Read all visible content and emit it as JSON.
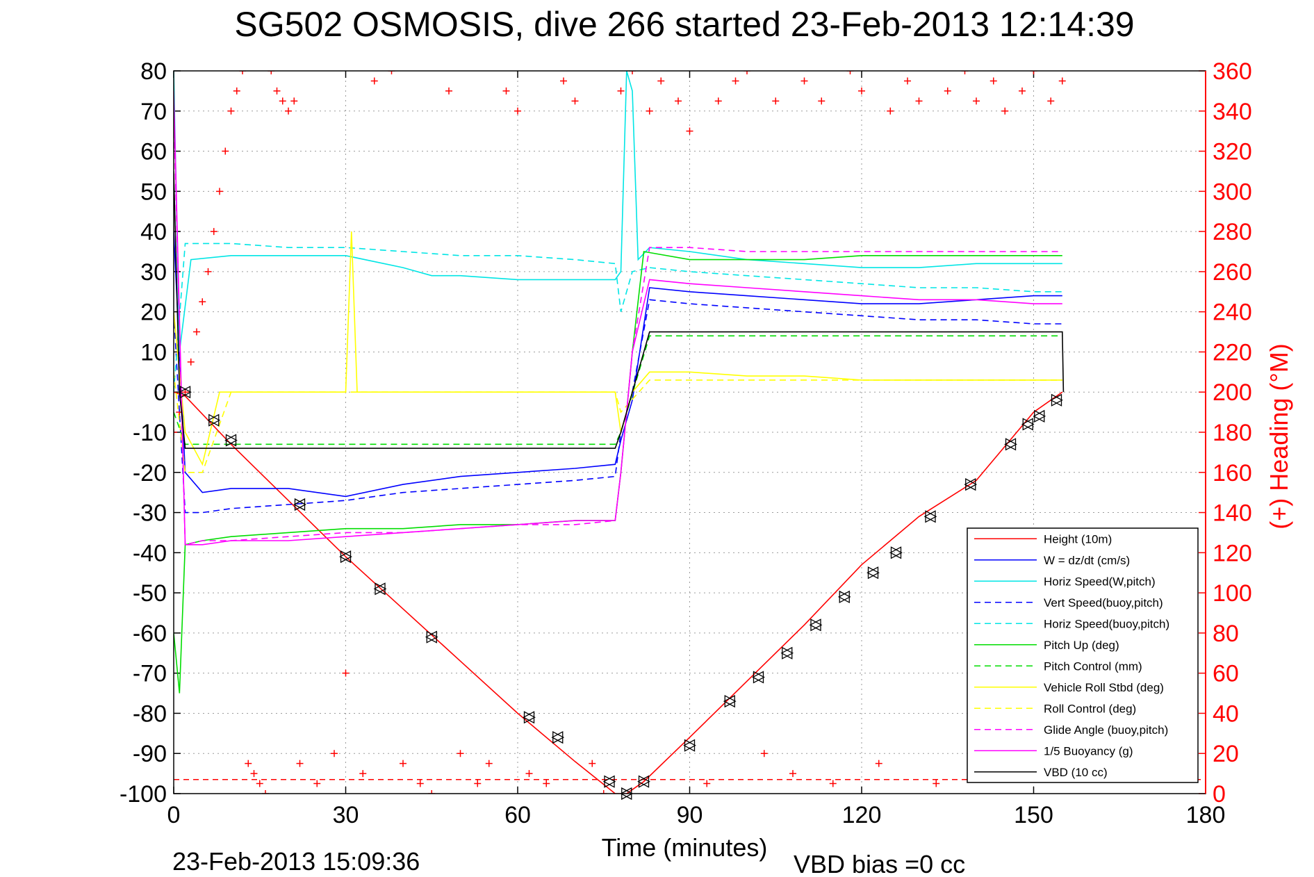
{
  "chart_data": {
    "type": "line",
    "title": "SG502 OSMOSIS, dive 266 started 23-Feb-2013 12:14:39",
    "xlabel": "Time (minutes)",
    "ylabel": "",
    "ylabel_right": "(+) Heading (°M)",
    "xlim": [
      0,
      180
    ],
    "ylim": [
      -100,
      80
    ],
    "ylim_right": [
      0,
      360
    ],
    "x_ticks": [
      "0",
      "30",
      "60",
      "90",
      "120",
      "150",
      "180"
    ],
    "y_ticks": [
      "80",
      "70",
      "60",
      "50",
      "40",
      "30",
      "20",
      "10",
      "0",
      "-10",
      "-20",
      "-30",
      "-40",
      "-50",
      "-60",
      "-70",
      "-80",
      "-90",
      "-100"
    ],
    "y_ticks_right": [
      "360",
      "340",
      "320",
      "300",
      "280",
      "260",
      "240",
      "220",
      "200",
      "180",
      "160",
      "140",
      "120",
      "100",
      "80",
      "60",
      "40",
      "20",
      "0"
    ],
    "grid": true,
    "legend_position": "bottom-right",
    "footer_left": "23-Feb-2013 15:09:36",
    "footer_right": "VBD bias =0 cc",
    "series": [
      {
        "name": "Height (10m)",
        "color": "#ff0000",
        "style": "solid",
        "x": [
          0,
          2,
          10,
          20,
          30,
          40,
          50,
          60,
          70,
          77,
          79,
          82,
          90,
          100,
          110,
          120,
          130,
          140,
          150,
          155
        ],
        "y": [
          0,
          -1,
          -13,
          -27,
          -41,
          -54,
          -67,
          -80,
          -92,
          -100,
          -100,
          -97,
          -86,
          -72,
          -58,
          -43,
          -31,
          -22,
          -5,
          0
        ]
      },
      {
        "name": "W = dz/dt (cm/s)",
        "color": "#0000ff",
        "style": "solid",
        "x": [
          0,
          1,
          2,
          5,
          10,
          20,
          30,
          40,
          50,
          60,
          70,
          77,
          78,
          80,
          83,
          90,
          100,
          110,
          120,
          130,
          140,
          150,
          155
        ],
        "y": [
          40,
          10,
          -20,
          -25,
          -24,
          -24,
          -26,
          -23,
          -21,
          -20,
          -19,
          -18,
          -12,
          -2,
          26,
          25,
          24,
          23,
          22,
          22,
          23,
          24,
          24
        ]
      },
      {
        "name": "Horiz Speed(W,pitch)",
        "color": "#00e5e5",
        "style": "solid",
        "x": [
          0,
          1,
          3,
          10,
          20,
          30,
          40,
          45,
          50,
          60,
          70,
          77,
          78,
          79,
          80,
          81,
          83,
          90,
          100,
          110,
          120,
          130,
          140,
          150,
          155
        ],
        "y": [
          80,
          10,
          33,
          34,
          34,
          34,
          31,
          29,
          29,
          28,
          28,
          28,
          30,
          80,
          75,
          33,
          36,
          35,
          33,
          32,
          31,
          31,
          32,
          32,
          32
        ]
      },
      {
        "name": "Vert Speed(buoy,pitch)",
        "color": "#0000ff",
        "style": "dashed",
        "x": [
          0,
          2,
          5,
          10,
          20,
          30,
          40,
          50,
          60,
          70,
          77,
          78,
          80,
          83,
          90,
          100,
          110,
          120,
          130,
          140,
          150,
          155
        ],
        "y": [
          20,
          -30,
          -30,
          -29,
          -28,
          -27,
          -25,
          -24,
          -23,
          -22,
          -21,
          -10,
          0,
          23,
          22,
          21,
          20,
          19,
          18,
          18,
          17,
          17
        ]
      },
      {
        "name": "Horiz Speed(buoy,pitch)",
        "color": "#00e5e5",
        "style": "dashed",
        "x": [
          0,
          2,
          5,
          10,
          20,
          30,
          40,
          50,
          60,
          70,
          77,
          78,
          80,
          83,
          90,
          100,
          110,
          120,
          130,
          140,
          150,
          155
        ],
        "y": [
          0,
          37,
          37,
          37,
          36,
          36,
          35,
          34,
          34,
          33,
          32,
          20,
          30,
          31,
          30,
          29,
          28,
          27,
          26,
          26,
          25,
          25
        ]
      },
      {
        "name": "Pitch Up (deg)",
        "color": "#00dd00",
        "style": "solid",
        "x": [
          0,
          1,
          2,
          5,
          10,
          20,
          30,
          40,
          50,
          60,
          70,
          77,
          78,
          80,
          82,
          90,
          100,
          110,
          120,
          130,
          140,
          150,
          155
        ],
        "y": [
          -60,
          -75,
          -38,
          -37,
          -36,
          -35,
          -34,
          -34,
          -33,
          -33,
          -32,
          -32,
          -20,
          10,
          35,
          33,
          33,
          33,
          34,
          34,
          34,
          34,
          34
        ]
      },
      {
        "name": "Pitch Control (mm)",
        "color": "#00dd00",
        "style": "dashed",
        "x": [
          0,
          2,
          77,
          78,
          83,
          155
        ],
        "y": [
          -5,
          -13,
          -13,
          -10,
          14,
          14
        ]
      },
      {
        "name": "Vehicle Roll Stbd (deg)",
        "color": "#ffff00",
        "style": "solid",
        "x": [
          0,
          2,
          5,
          8,
          10,
          20,
          30,
          31,
          32,
          40,
          50,
          60,
          70,
          77,
          78,
          80,
          83,
          90,
          100,
          110,
          120,
          130,
          140,
          150,
          155
        ],
        "y": [
          20,
          -10,
          -18,
          0,
          0,
          0,
          0,
          40,
          0,
          0,
          0,
          0,
          0,
          0,
          -10,
          0,
          5,
          5,
          4,
          4,
          3,
          3,
          3,
          3,
          3
        ]
      },
      {
        "name": "Roll Control (deg)",
        "color": "#ffff00",
        "style": "dashed",
        "x": [
          0,
          2,
          5,
          10,
          77,
          78,
          83,
          155
        ],
        "y": [
          5,
          -20,
          -20,
          0,
          0,
          -5,
          3,
          3
        ]
      },
      {
        "name": "Glide Angle (buoy,pitch)",
        "color": "#ff00ff",
        "style": "dashed",
        "x": [
          0,
          2,
          5,
          10,
          20,
          30,
          40,
          50,
          60,
          70,
          77,
          78,
          80,
          83,
          90,
          100,
          110,
          120,
          130,
          140,
          150,
          155
        ],
        "y": [
          70,
          -38,
          -37,
          -37,
          -36,
          -35,
          -35,
          -34,
          -33,
          -33,
          -32,
          -20,
          10,
          36,
          36,
          35,
          35,
          35,
          35,
          35,
          35,
          35
        ]
      },
      {
        "name": "1/5 Buoyancy (g)",
        "color": "#ff00ff",
        "style": "solid",
        "x": [
          0,
          2,
          5,
          10,
          20,
          30,
          40,
          50,
          60,
          70,
          77,
          78,
          80,
          83,
          90,
          100,
          110,
          120,
          130,
          140,
          150,
          155
        ],
        "y": [
          75,
          -38,
          -38,
          -37,
          -37,
          -36,
          -35,
          -34,
          -33,
          -32,
          -32,
          -20,
          10,
          28,
          27,
          26,
          25,
          24,
          23,
          23,
          22,
          22
        ]
      },
      {
        "name": "VBD (10 cc)",
        "color": "#000000",
        "style": "solid",
        "x": [
          0,
          1,
          2,
          77,
          78,
          83,
          155,
          155.2
        ],
        "y": [
          55,
          0,
          -14,
          -14,
          -10,
          15,
          15,
          0
        ]
      }
    ],
    "heading_series": {
      "name": "(+) Heading (°M)",
      "color": "#ff0000",
      "marker": "+",
      "x": [
        0,
        1,
        2,
        3,
        4,
        5,
        6,
        7,
        8,
        9,
        10,
        11,
        12,
        13,
        14,
        15,
        16,
        17,
        18,
        19,
        20,
        21,
        22,
        25,
        28,
        30,
        33,
        35,
        38,
        40,
        43,
        45,
        48,
        50,
        53,
        55,
        58,
        60,
        62,
        65,
        68,
        70,
        73,
        75,
        78,
        80,
        83,
        85,
        88,
        90,
        93,
        95,
        98,
        100,
        103,
        105,
        108,
        110,
        113,
        115,
        118,
        120,
        123,
        125,
        128,
        130,
        133,
        135,
        138,
        140,
        143,
        145,
        148,
        150,
        153,
        155
      ],
      "y": [
        180,
        190,
        200,
        215,
        230,
        245,
        260,
        280,
        300,
        320,
        340,
        350,
        360,
        15,
        10,
        5,
        0,
        360,
        350,
        345,
        340,
        345,
        15,
        5,
        20,
        60,
        10,
        355,
        360,
        15,
        5,
        0,
        350,
        20,
        5,
        15,
        350,
        340,
        10,
        5,
        355,
        345,
        15,
        0,
        350,
        360,
        340,
        355,
        345,
        330,
        5,
        345,
        355,
        360,
        20,
        345,
        10,
        355,
        345,
        5,
        360,
        350,
        15,
        340,
        355,
        345,
        5,
        350,
        360,
        345,
        355,
        340,
        350,
        360,
        345,
        355
      ]
    },
    "vbd_markers": {
      "x": [
        2,
        7,
        10,
        22,
        30,
        36,
        45,
        62,
        67,
        76,
        79,
        82,
        90,
        97,
        102,
        107,
        112,
        117,
        122,
        126,
        132,
        139,
        146,
        149,
        151,
        154
      ],
      "y": [
        0,
        -7,
        -12,
        -28,
        -41,
        -49,
        -61,
        -81,
        -86,
        -97,
        -100,
        -97,
        -88,
        -77,
        -71,
        -65,
        -58,
        -51,
        -45,
        -40,
        -31,
        -23,
        -13,
        -8,
        -6,
        -2
      ]
    }
  }
}
